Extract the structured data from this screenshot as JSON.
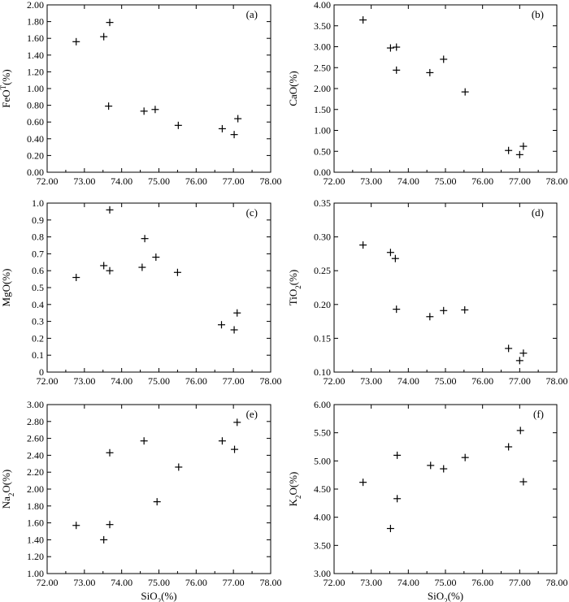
{
  "figure": {
    "colors": {
      "axis": "#000000",
      "marker": "#000000",
      "background": "#ffffff"
    }
  },
  "chart_data": [
    {
      "panel_label": "(a)",
      "type": "scatter",
      "marker": "plus",
      "xlabel": "",
      "ylabel": "FeO",
      "ylabel_sup": "T",
      "ylabel_suffix": "(%)",
      "xlim": [
        72,
        78
      ],
      "ylim": [
        0,
        2
      ],
      "xticks": [
        "72.00",
        "73.00",
        "74.00",
        "75.00",
        "76.00",
        "77.00",
        "78.00"
      ],
      "yticks": [
        "0.00",
        "0.20",
        "0.40",
        "0.60",
        "0.80",
        "1.00",
        "1.20",
        "1.40",
        "1.60",
        "1.80",
        "2.00"
      ],
      "grid": false,
      "points": [
        [
          72.78,
          1.56
        ],
        [
          73.52,
          1.62
        ],
        [
          73.68,
          1.79
        ],
        [
          73.65,
          0.79
        ],
        [
          74.6,
          0.73
        ],
        [
          74.9,
          0.75
        ],
        [
          75.52,
          0.56
        ],
        [
          76.7,
          0.52
        ],
        [
          77.02,
          0.45
        ],
        [
          77.12,
          0.64
        ]
      ]
    },
    {
      "panel_label": "(b)",
      "type": "scatter",
      "marker": "plus",
      "xlabel": "",
      "ylabel": "CaO(%)",
      "xlim": [
        72,
        78
      ],
      "ylim": [
        0,
        4
      ],
      "xticks": [
        "72.00",
        "73.00",
        "74.00",
        "75.00",
        "76.00",
        "77.00",
        "78.00"
      ],
      "yticks": [
        "0.00",
        "0.50",
        "1.00",
        "1.50",
        "2.00",
        "2.50",
        "3.00",
        "3.50",
        "4.00"
      ],
      "grid": false,
      "points": [
        [
          72.78,
          3.64
        ],
        [
          73.52,
          2.97
        ],
        [
          73.68,
          2.99
        ],
        [
          73.68,
          2.44
        ],
        [
          74.58,
          2.38
        ],
        [
          74.95,
          2.7
        ],
        [
          75.53,
          1.92
        ],
        [
          76.7,
          0.52
        ],
        [
          77.0,
          0.42
        ],
        [
          77.1,
          0.62
        ]
      ]
    },
    {
      "panel_label": "(c)",
      "type": "scatter",
      "marker": "plus",
      "xlabel": "",
      "ylabel": "MgO(%)",
      "xlim": [
        72,
        78
      ],
      "ylim": [
        0,
        1
      ],
      "xticks": [
        "72.00",
        "73.00",
        "74.00",
        "75.00",
        "76.00",
        "77.00",
        "78.00"
      ],
      "yticks": [
        "0",
        "0.1",
        "0.2",
        "0.3",
        "0.4",
        "0.5",
        "0.6",
        "0.7",
        "0.8",
        "0.9",
        "1.0"
      ],
      "grid": false,
      "points": [
        [
          72.78,
          0.56
        ],
        [
          73.52,
          0.63
        ],
        [
          73.68,
          0.96
        ],
        [
          73.68,
          0.6
        ],
        [
          74.55,
          0.62
        ],
        [
          74.62,
          0.79
        ],
        [
          74.92,
          0.68
        ],
        [
          75.5,
          0.59
        ],
        [
          76.68,
          0.28
        ],
        [
          77.02,
          0.25
        ],
        [
          77.1,
          0.35
        ]
      ]
    },
    {
      "panel_label": "(d)",
      "type": "scatter",
      "marker": "plus",
      "xlabel": "",
      "ylabel": "TiO",
      "ylabel_sub": "2",
      "ylabel_suffix": "(%)",
      "xlim": [
        72,
        78
      ],
      "ylim": [
        0.1,
        0.35
      ],
      "xticks": [
        "72.00",
        "73.00",
        "74.00",
        "75.00",
        "76.00",
        "77.00",
        "78.00"
      ],
      "yticks": [
        "0.10",
        "0.15",
        "0.20",
        "0.25",
        "0.30",
        "0.35"
      ],
      "grid": false,
      "points": [
        [
          72.78,
          0.288
        ],
        [
          73.52,
          0.277
        ],
        [
          73.65,
          0.268
        ],
        [
          73.68,
          0.193
        ],
        [
          74.58,
          0.182
        ],
        [
          74.95,
          0.191
        ],
        [
          75.52,
          0.192
        ],
        [
          76.7,
          0.135
        ],
        [
          77.0,
          0.117
        ],
        [
          77.1,
          0.128
        ]
      ]
    },
    {
      "panel_label": "(e)",
      "type": "scatter",
      "marker": "plus",
      "xlabel": "SiO",
      "xlabel_sub": "2",
      "xlabel_suffix": "(%)",
      "ylabel": "Na",
      "ylabel_sub": "2",
      "ylabel_suffix": "O(%)",
      "xlim": [
        72,
        78
      ],
      "ylim": [
        1,
        3
      ],
      "xticks": [
        "72.00",
        "73.00",
        "74.00",
        "75.00",
        "76.00",
        "77.00",
        "78.00"
      ],
      "yticks": [
        "1.00",
        "1.20",
        "1.40",
        "1.60",
        "1.80",
        "2.00",
        "2.20",
        "2.40",
        "2.60",
        "2.80",
        "3.00"
      ],
      "grid": false,
      "points": [
        [
          72.78,
          1.57
        ],
        [
          73.52,
          1.4
        ],
        [
          73.68,
          1.58
        ],
        [
          73.68,
          2.43
        ],
        [
          74.6,
          2.57
        ],
        [
          74.95,
          1.85
        ],
        [
          75.53,
          2.26
        ],
        [
          76.7,
          2.57
        ],
        [
          77.03,
          2.47
        ],
        [
          77.1,
          2.79
        ]
      ]
    },
    {
      "panel_label": "(f)",
      "type": "scatter",
      "marker": "plus",
      "xlabel": "SiO",
      "xlabel_sub": "2",
      "xlabel_suffix": "(%)",
      "ylabel": "K",
      "ylabel_sub": "2",
      "ylabel_suffix": "O(%)",
      "xlim": [
        72,
        78
      ],
      "ylim": [
        3,
        6
      ],
      "xticks": [
        "72.00",
        "73.00",
        "74.00",
        "75.00",
        "76.00",
        "77.00",
        "78.00"
      ],
      "yticks": [
        "3.00",
        "3.50",
        "4.00",
        "4.50",
        "5.00",
        "5.50",
        "6.00"
      ],
      "grid": false,
      "points": [
        [
          72.78,
          4.62
        ],
        [
          73.52,
          3.8
        ],
        [
          73.7,
          5.1
        ],
        [
          73.7,
          4.33
        ],
        [
          74.6,
          4.92
        ],
        [
          74.95,
          4.86
        ],
        [
          75.53,
          5.06
        ],
        [
          76.7,
          5.25
        ],
        [
          77.02,
          5.54
        ],
        [
          77.1,
          4.63
        ]
      ]
    }
  ]
}
